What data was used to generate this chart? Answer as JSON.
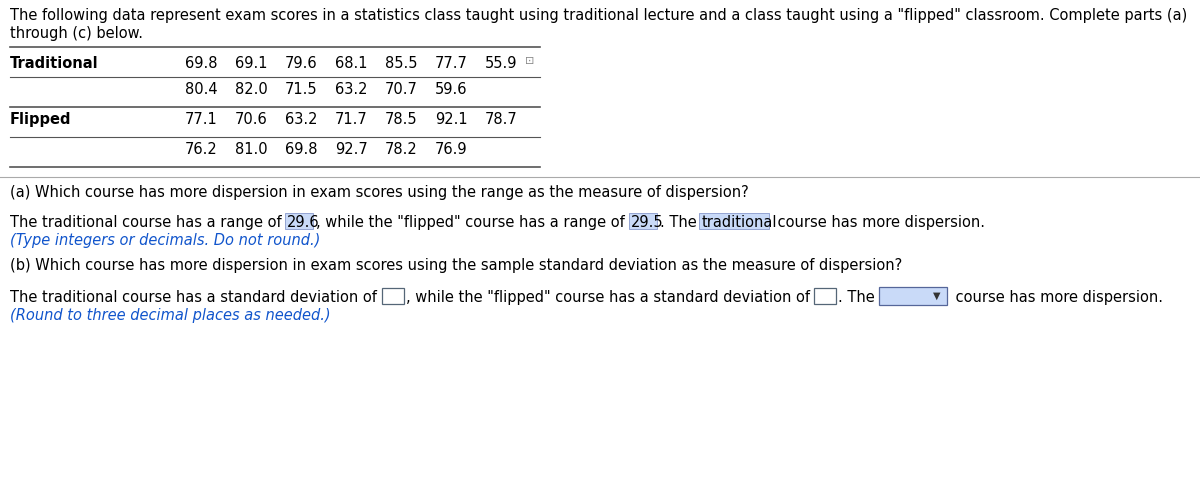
{
  "traditional_row1": [
    "69.8",
    "69.1",
    "79.6",
    "68.1",
    "85.5",
    "77.7",
    "55.9"
  ],
  "traditional_row2": [
    "80.4",
    "82.0",
    "71.5",
    "63.2",
    "70.7",
    "59.6"
  ],
  "flipped_row1": [
    "77.1",
    "70.6",
    "63.2",
    "71.7",
    "78.5",
    "92.1",
    "78.7"
  ],
  "flipped_row2": [
    "76.2",
    "81.0",
    "69.8",
    "92.7",
    "78.2",
    "76.9"
  ],
  "header_line1": "The following data represent exam scores in a statistics class taught using traditional lecture and a class taught using a \"flipped\" classroom. Complete parts (a)",
  "header_line2": "through (c) below.",
  "part_a_q": "(a) Which course has more dispersion in exam scores using the range as the measure of dispersion?",
  "part_b_q": "(b) Which course has more dispersion in exam scores using the sample standard deviation as the measure of dispersion?",
  "part_a_note": "(Type integers or decimals. Do not round.)",
  "part_b_note": "(Round to three decimal places as needed.)",
  "bg_color": "#ffffff",
  "text_color": "#000000",
  "blue_color": "#1155cc",
  "highlight_color": "#c9daf8",
  "box_edge_color": "#7f9cf5",
  "table_line_color": "#555555",
  "sep_line_color": "#aaaaaa",
  "fs": 10.5,
  "fs_bold_parts": 10.5,
  "dpi": 100,
  "fig_w": 12.0,
  "fig_h": 4.85
}
